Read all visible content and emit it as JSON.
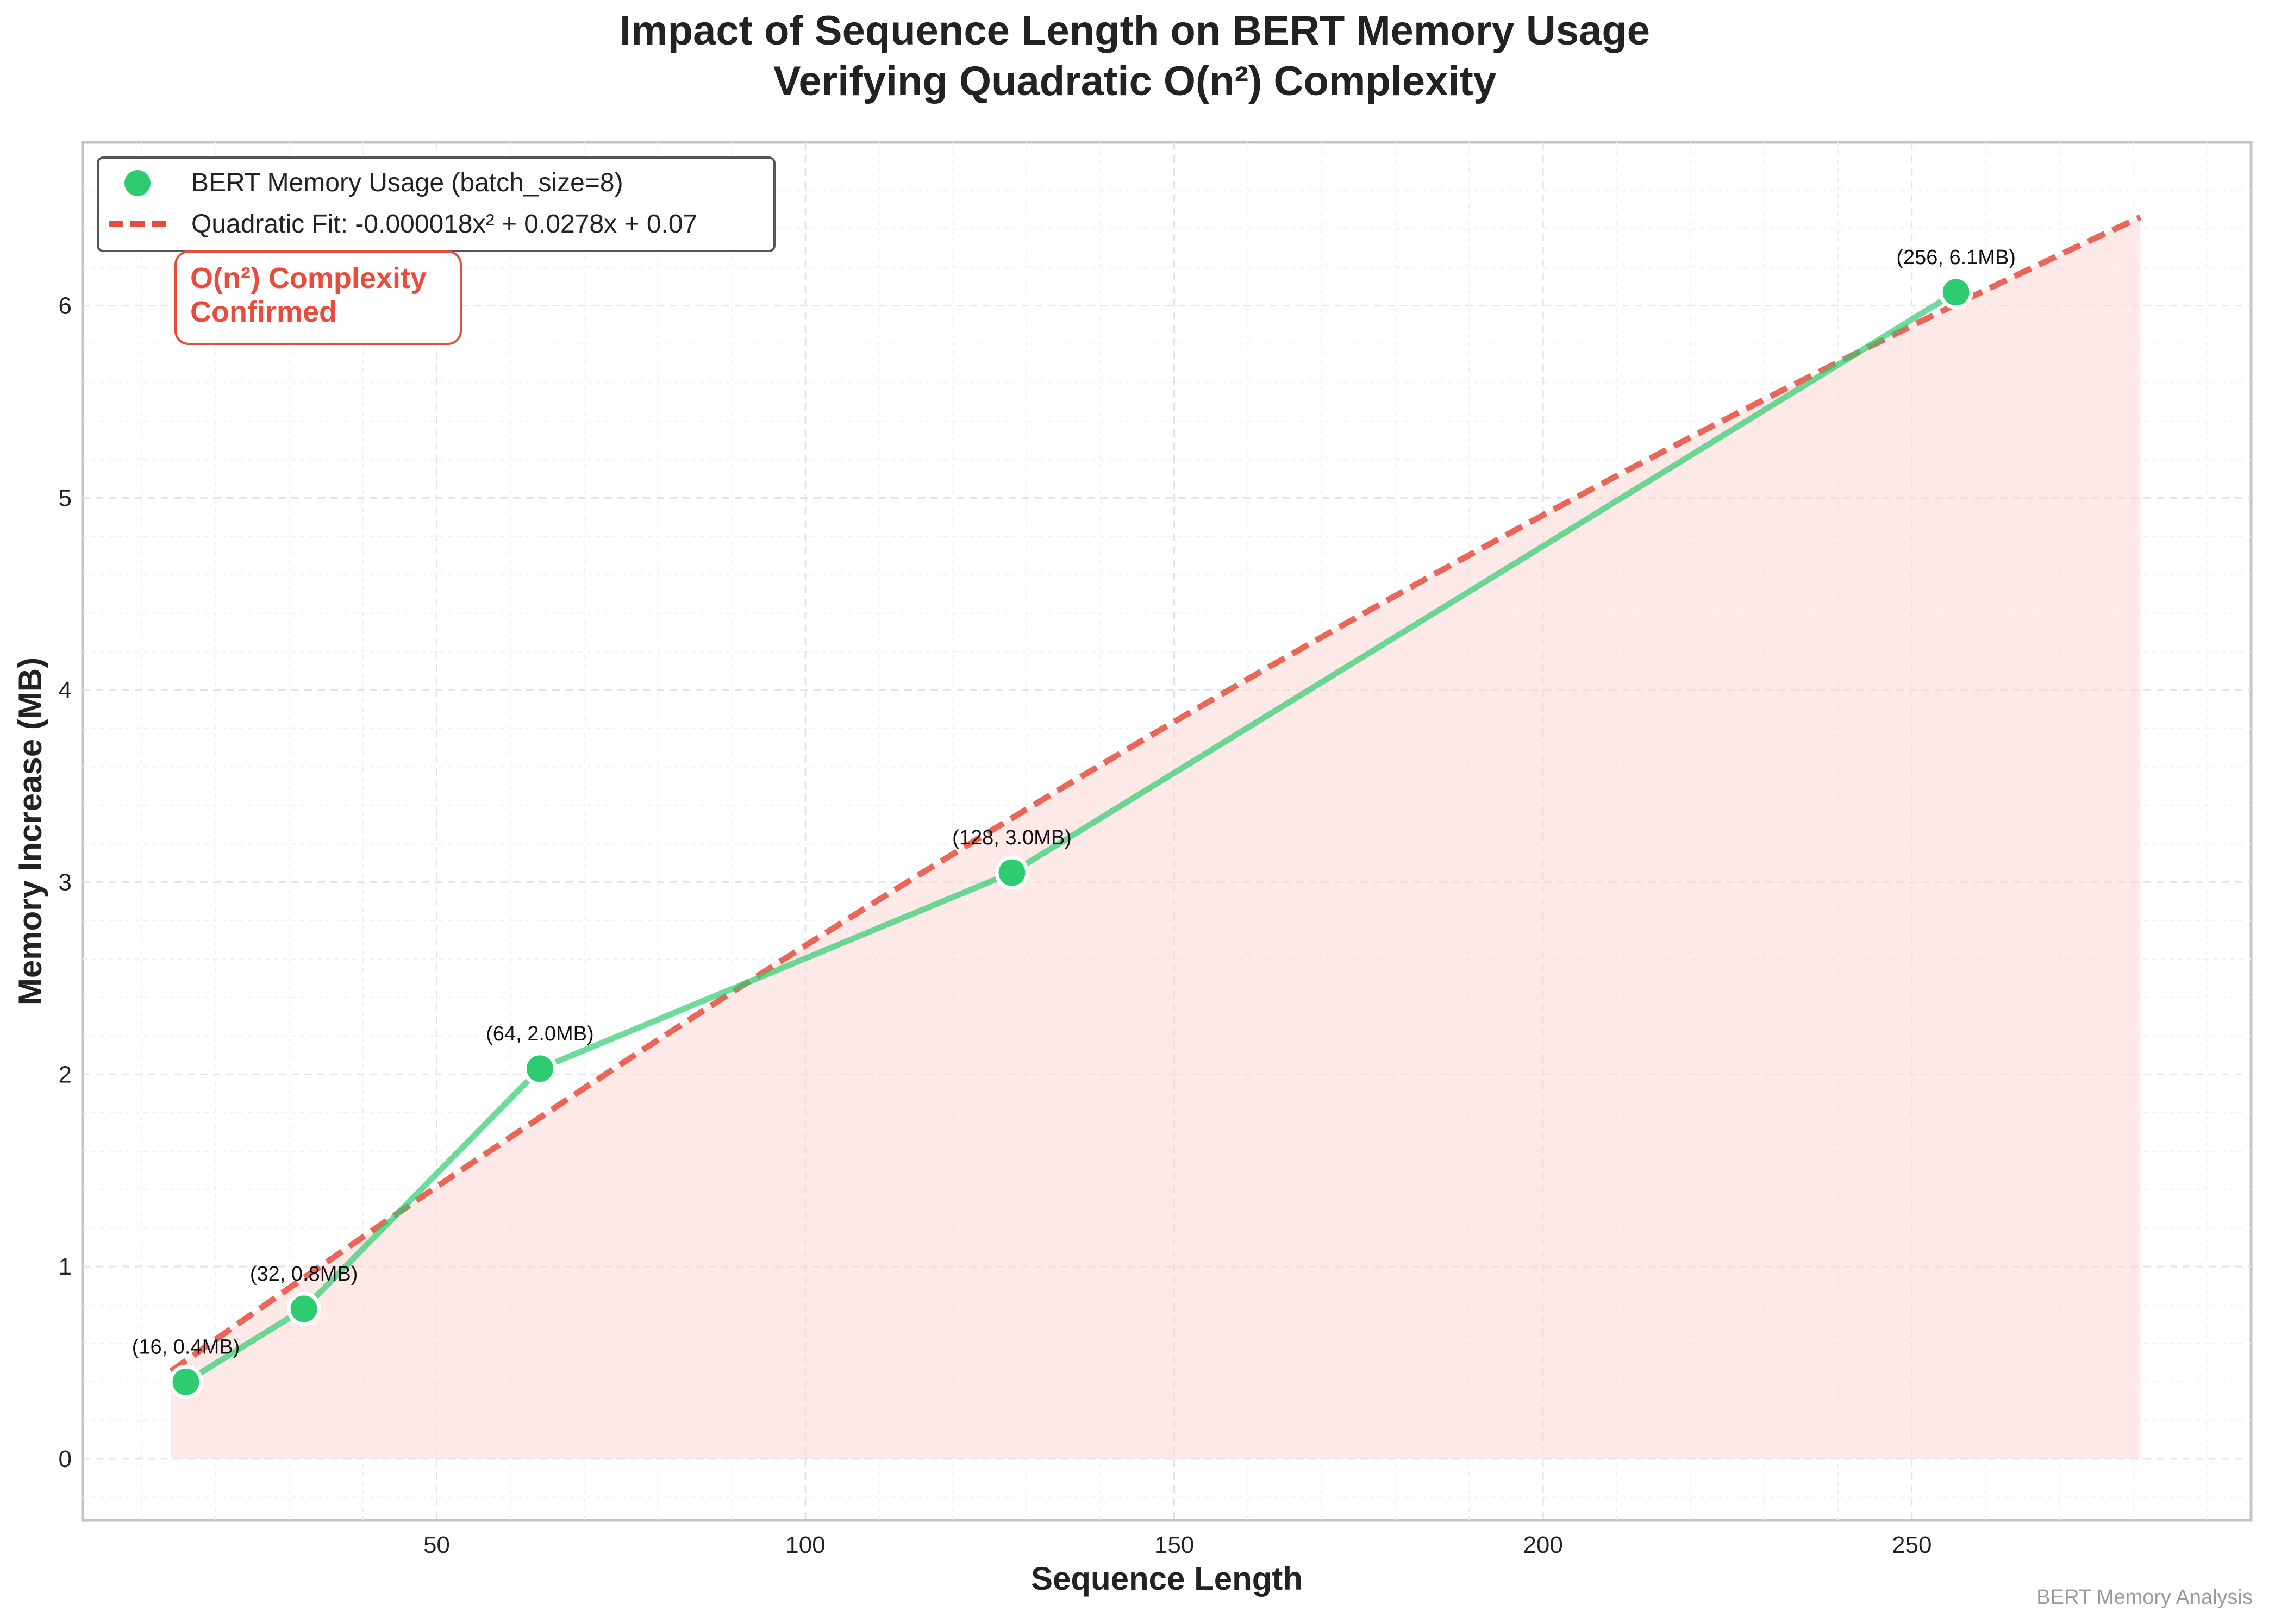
{
  "chart_data": {
    "type": "line",
    "title": "Impact of Sequence Length on BERT Memory Usage",
    "subtitle": "Verifying Quadratic O(n²) Complexity",
    "xlabel": "Sequence Length",
    "ylabel": "Memory Increase (MB)",
    "xlim": [
      2,
      296
    ],
    "ylim": [
      -0.32,
      6.85
    ],
    "xticks": [
      50,
      100,
      150,
      200,
      250
    ],
    "yticks": [
      0,
      1,
      2,
      3,
      4,
      5,
      6
    ],
    "grid": true,
    "legend_position": "top-left",
    "series": [
      {
        "name": "BERT Memory Usage (batch_size=8)",
        "kind": "line+markers",
        "color": "#2ecc71",
        "x": [
          16,
          32,
          64,
          128,
          256
        ],
        "y": [
          0.4,
          0.78,
          2.03,
          3.05,
          6.07
        ],
        "labels": [
          "(16, 0.4MB)",
          "(32, 0.8MB)",
          "(64, 2.0MB)",
          "(128, 3.0MB)",
          "(256, 6.1MB)"
        ]
      },
      {
        "name": "Quadratic Fit: -0.000018x² + 0.0278x + 0.07",
        "kind": "dashed-fit",
        "color": "#e74c3c",
        "coefficients": {
          "a": -1.8e-05,
          "b": 0.0278,
          "c": 0.07
        },
        "x_range": [
          14,
          281
        ]
      }
    ],
    "fill_area": {
      "color": "#fadbd8",
      "x_range": [
        14,
        281
      ]
    },
    "annotation": {
      "text_lines": [
        "O(n²) Complexity",
        "Confirmed"
      ],
      "color": "#e74c3c"
    },
    "watermark": "BERT Memory Analysis"
  }
}
